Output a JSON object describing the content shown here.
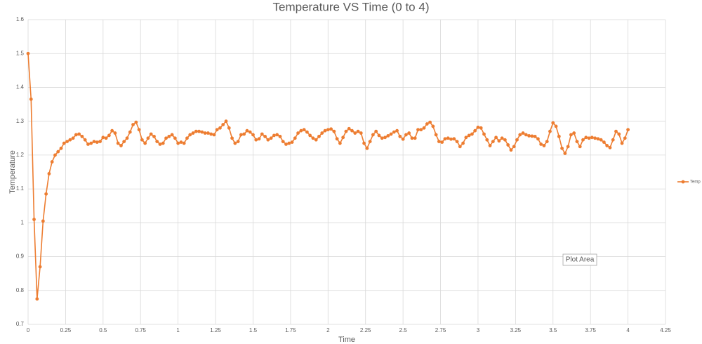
{
  "chart_data": {
    "type": "line",
    "title": "Temperature VS Time (0 to 4)",
    "x_label": "Time",
    "y_label": "Temperature",
    "annotation": "Plot Area",
    "xlim": [
      0,
      4.25
    ],
    "xticks": [
      0,
      0.25,
      0.5,
      0.75,
      1,
      1.25,
      1.5,
      1.75,
      2,
      2.25,
      2.5,
      2.75,
      3,
      3.25,
      3.5,
      3.75,
      4,
      4.25
    ],
    "ylim": [
      0.7,
      1.6
    ],
    "yticks": [
      0.7,
      0.8,
      0.9,
      1,
      1.1,
      1.2,
      1.3,
      1.4,
      1.5,
      1.6
    ],
    "grid": true,
    "legend": "right",
    "x": [
      0,
      0.02,
      0.04,
      0.06,
      0.08,
      0.1,
      0.12,
      0.14,
      0.16,
      0.18,
      0.2,
      0.22,
      0.24,
      0.26,
      0.28,
      0.3,
      0.32,
      0.34,
      0.36,
      0.38,
      0.4,
      0.42,
      0.44,
      0.46,
      0.48,
      0.5,
      0.52,
      0.54,
      0.56,
      0.58,
      0.6,
      0.62,
      0.64,
      0.66,
      0.68,
      0.7,
      0.72,
      0.74,
      0.76,
      0.78,
      0.8,
      0.82,
      0.84,
      0.86,
      0.88,
      0.9,
      0.92,
      0.94,
      0.96,
      0.98,
      1,
      1.02,
      1.04,
      1.06,
      1.08,
      1.1,
      1.12,
      1.14,
      1.16,
      1.18,
      1.2,
      1.22,
      1.24,
      1.26,
      1.28,
      1.3,
      1.32,
      1.34,
      1.36,
      1.38,
      1.4,
      1.42,
      1.44,
      1.46,
      1.48,
      1.5,
      1.52,
      1.54,
      1.56,
      1.58,
      1.6,
      1.62,
      1.64,
      1.66,
      1.68,
      1.7,
      1.72,
      1.74,
      1.76,
      1.78,
      1.8,
      1.82,
      1.84,
      1.86,
      1.88,
      1.9,
      1.92,
      1.94,
      1.96,
      1.98,
      2,
      2.02,
      2.04,
      2.06,
      2.08,
      2.1,
      2.12,
      2.14,
      2.16,
      2.18,
      2.2,
      2.22,
      2.24,
      2.26,
      2.28,
      2.3,
      2.32,
      2.34,
      2.36,
      2.38,
      2.4,
      2.42,
      2.44,
      2.46,
      2.48,
      2.5,
      2.52,
      2.54,
      2.56,
      2.58,
      2.6,
      2.62,
      2.64,
      2.66,
      2.68,
      2.7,
      2.72,
      2.74,
      2.76,
      2.78,
      2.8,
      2.82,
      2.84,
      2.86,
      2.88,
      2.9,
      2.92,
      2.94,
      2.96,
      2.98,
      3,
      3.02,
      3.04,
      3.06,
      3.08,
      3.1,
      3.12,
      3.14,
      3.16,
      3.18,
      3.2,
      3.22,
      3.24,
      3.26,
      3.28,
      3.3,
      3.32,
      3.34,
      3.36,
      3.38,
      3.4,
      3.42,
      3.44,
      3.46,
      3.48,
      3.5,
      3.52,
      3.54,
      3.56,
      3.58,
      3.6,
      3.62,
      3.64,
      3.66,
      3.68,
      3.7,
      3.72,
      3.74,
      3.76,
      3.78,
      3.8,
      3.82,
      3.84,
      3.86,
      3.88,
      3.9,
      3.92,
      3.94,
      3.96,
      3.98,
      4
    ],
    "series": [
      {
        "name": "Temp",
        "color": "#ed7d31",
        "values": [
          1.5,
          1.365,
          1.01,
          0.775,
          0.87,
          1.005,
          1.085,
          1.145,
          1.18,
          1.2,
          1.21,
          1.22,
          1.235,
          1.24,
          1.245,
          1.25,
          1.26,
          1.262,
          1.255,
          1.245,
          1.232,
          1.235,
          1.24,
          1.238,
          1.24,
          1.252,
          1.25,
          1.258,
          1.272,
          1.265,
          1.235,
          1.228,
          1.24,
          1.25,
          1.268,
          1.29,
          1.297,
          1.275,
          1.245,
          1.235,
          1.25,
          1.262,
          1.255,
          1.24,
          1.232,
          1.235,
          1.25,
          1.255,
          1.26,
          1.25,
          1.235,
          1.238,
          1.235,
          1.25,
          1.26,
          1.265,
          1.27,
          1.27,
          1.268,
          1.265,
          1.265,
          1.262,
          1.26,
          1.275,
          1.28,
          1.29,
          1.3,
          1.28,
          1.25,
          1.235,
          1.24,
          1.26,
          1.262,
          1.272,
          1.268,
          1.26,
          1.245,
          1.248,
          1.262,
          1.255,
          1.245,
          1.25,
          1.258,
          1.26,
          1.255,
          1.24,
          1.232,
          1.235,
          1.238,
          1.25,
          1.265,
          1.272,
          1.275,
          1.268,
          1.258,
          1.25,
          1.245,
          1.255,
          1.265,
          1.272,
          1.275,
          1.277,
          1.27,
          1.248,
          1.235,
          1.252,
          1.27,
          1.278,
          1.272,
          1.265,
          1.27,
          1.265,
          1.235,
          1.22,
          1.24,
          1.26,
          1.27,
          1.258,
          1.25,
          1.252,
          1.257,
          1.262,
          1.268,
          1.272,
          1.255,
          1.247,
          1.26,
          1.265,
          1.25,
          1.25,
          1.275,
          1.275,
          1.28,
          1.292,
          1.297,
          1.285,
          1.26,
          1.24,
          1.238,
          1.248,
          1.25,
          1.247,
          1.248,
          1.24,
          1.225,
          1.235,
          1.252,
          1.258,
          1.262,
          1.272,
          1.282,
          1.28,
          1.262,
          1.245,
          1.228,
          1.24,
          1.252,
          1.242,
          1.25,
          1.245,
          1.23,
          1.215,
          1.225,
          1.245,
          1.26,
          1.265,
          1.26,
          1.257,
          1.256,
          1.255,
          1.248,
          1.232,
          1.228,
          1.24,
          1.27,
          1.295,
          1.285,
          1.255,
          1.22,
          1.205,
          1.225,
          1.26,
          1.265,
          1.24,
          1.225,
          1.245,
          1.252,
          1.25,
          1.252,
          1.25,
          1.248,
          1.245,
          1.238,
          1.228,
          1.222,
          1.245,
          1.27,
          1.262,
          1.235,
          1.25,
          1.275
        ]
      }
    ]
  }
}
